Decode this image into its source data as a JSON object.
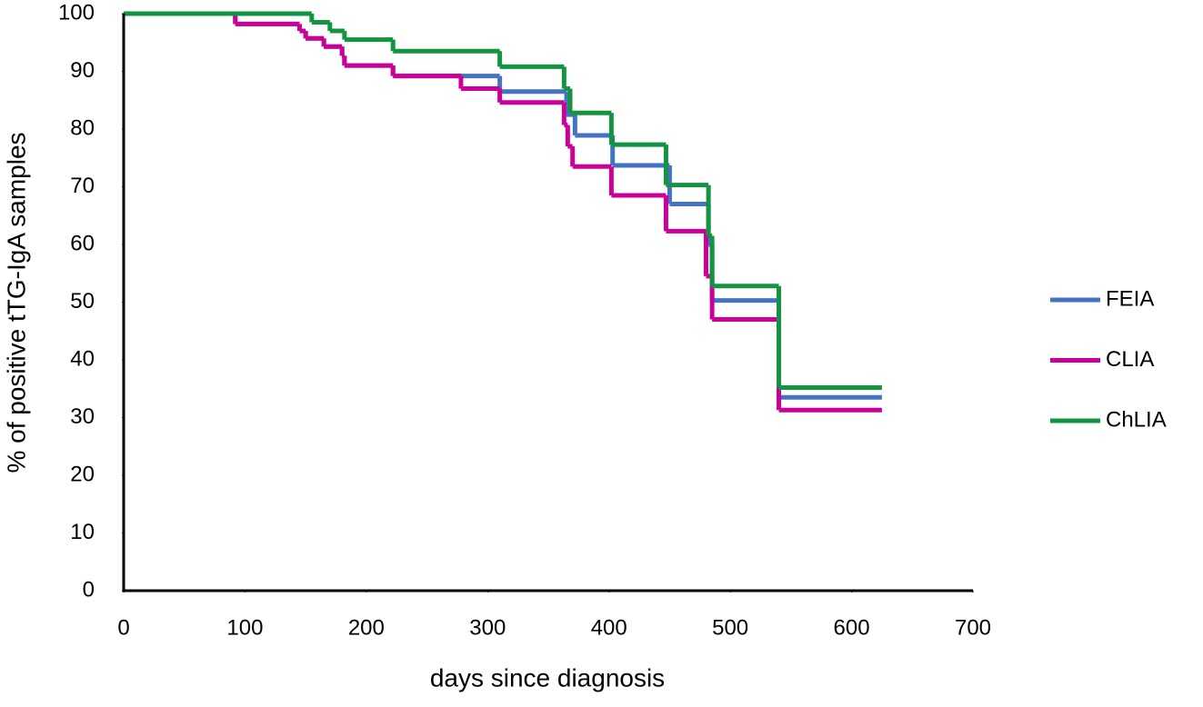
{
  "chart_data": {
    "type": "line",
    "step": "post",
    "x_label": "days since diagnosis",
    "y_label": "% of positive tTG-IgA samples",
    "xlim": [
      0,
      700
    ],
    "xticks": [
      0,
      100,
      200,
      300,
      400,
      500,
      600,
      700
    ],
    "ylim": [
      0,
      100
    ],
    "yticks": [
      0,
      10,
      20,
      30,
      40,
      50,
      60,
      70,
      80,
      90,
      100
    ],
    "grid": false,
    "legend": "right",
    "series": [
      {
        "name": "FEIA",
        "color": "#4472c4",
        "x": [
          0,
          92,
          145,
          150,
          165,
          180,
          182,
          222,
          310,
          365,
          372,
          403,
          450,
          482,
          485,
          540,
          625
        ],
        "values": [
          100,
          98.2,
          97,
          95.7,
          94.3,
          92.7,
          91,
          89.2,
          86.5,
          82.5,
          78.9,
          73.7,
          67,
          60,
          50.3,
          33.5,
          33.5
        ]
      },
      {
        "name": "CLIA",
        "color": "#cc0099",
        "x": [
          0,
          92,
          145,
          150,
          165,
          180,
          182,
          222,
          278,
          310,
          363,
          366,
          370,
          402,
          447,
          480,
          485,
          540,
          625
        ],
        "values": [
          100,
          98.2,
          97,
          95.7,
          94.3,
          92.7,
          91,
          89.2,
          87,
          84.6,
          80.7,
          77,
          73.5,
          68.5,
          62.3,
          54.5,
          47,
          31.3,
          31.3
        ]
      },
      {
        "name": "ChLIA",
        "color": "#129440",
        "x": [
          0,
          155,
          170,
          182,
          222,
          310,
          363,
          368,
          402,
          447,
          482,
          485,
          540,
          625
        ],
        "values": [
          100,
          98.5,
          97,
          95.5,
          93.5,
          90.8,
          87,
          82.8,
          77.3,
          70.3,
          61.5,
          52.8,
          35.2,
          35.2
        ]
      }
    ]
  }
}
